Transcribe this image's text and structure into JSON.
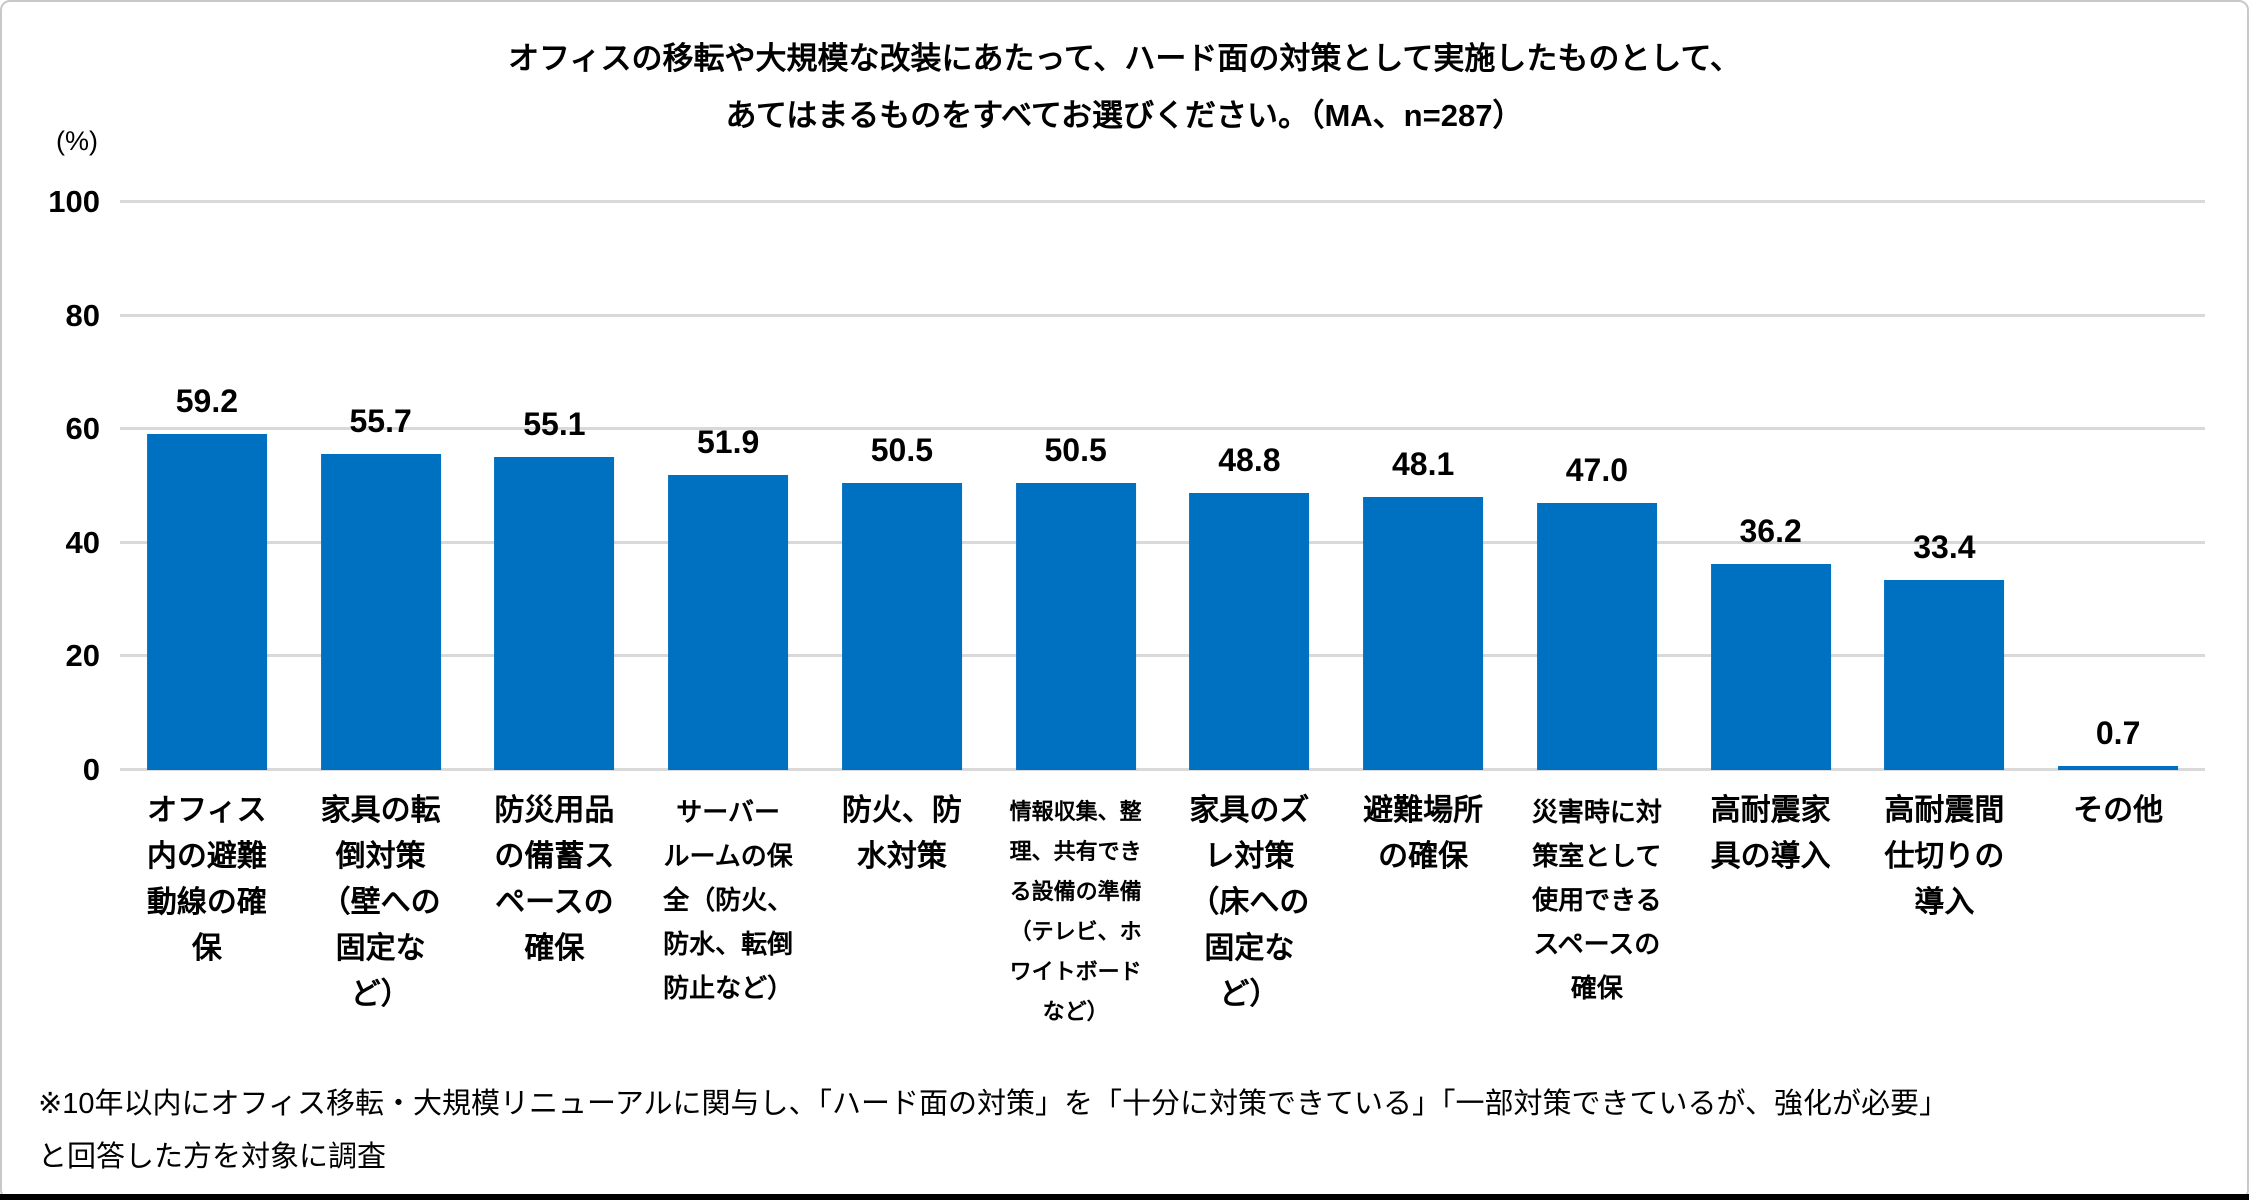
{
  "title": {
    "line1": "オフィスの移転や大規模な改装にあたって、ハード面の対策として実施したものとして、",
    "line2": "あてはまるものをすべてお選びください。（MA、n=287）"
  },
  "y_axis": {
    "unit_label": "(%)",
    "ticks": [
      0,
      20,
      40,
      60,
      80,
      100
    ],
    "max": 100
  },
  "footnote": {
    "line1": "※10年以内にオフィス移転・大規模リニューアルに関与し、「ハード面の対策」を「十分に対策できている」「一部対策できているが、強化が必要」",
    "line2": "と回答した方を対象に調査"
  },
  "colors": {
    "bar": "#0070c0",
    "gridline": "#d9d9d9",
    "text": "#000000",
    "frame_border": "#c9c9c9",
    "bottom_rule": "#000000"
  },
  "chart_data": {
    "type": "bar",
    "title": "オフィスの移転や大規模な改装にあたって、ハード面の対策として実施したものとして、あてはまるものをすべてお選びください。（MA、n=287）",
    "xlabel": "",
    "ylabel": "(%)",
    "ylim": [
      0,
      100
    ],
    "grid": true,
    "legend": false,
    "categories": [
      "オフィス内の避難動線の確保",
      "家具の転倒対策（壁への固定など）",
      "防災用品の備蓄スペースの確保",
      "サーバールームの保全（防火、防水、転倒防止など）",
      "防火、防水対策",
      "情報収集、整理、共有できる設備の準備（テレビ、ホワイトボードなど）",
      "家具のズレ対策（床への固定など）",
      "避難場所の確保",
      "災害時に対策室として使用できるスペースの確保",
      "高耐震家具の導入",
      "高耐震間仕切りの導入",
      "その他"
    ],
    "values": [
      59.2,
      55.7,
      55.1,
      51.9,
      50.5,
      50.5,
      48.8,
      48.1,
      47.0,
      36.2,
      33.4,
      0.7
    ],
    "value_labels": [
      "59.2",
      "55.7",
      "55.1",
      "51.9",
      "50.5",
      "50.5",
      "48.8",
      "48.1",
      "47.0",
      "36.2",
      "33.4",
      "0.7"
    ]
  },
  "category_display": [
    {
      "lines": [
        "オフィス",
        "内の避難",
        "動線の確",
        "保"
      ],
      "size": "large"
    },
    {
      "lines": [
        "家具の転",
        "倒対策",
        "（壁への",
        "固定な",
        "ど）"
      ],
      "size": "large"
    },
    {
      "lines": [
        "防災用品",
        "の備蓄ス",
        "ペースの",
        "確保"
      ],
      "size": "large"
    },
    {
      "lines": [
        "サーバー",
        "ルームの保",
        "全（防火、",
        "防水、転倒",
        "防止など）"
      ],
      "size": "medium"
    },
    {
      "lines": [
        "防火、防",
        "水対策"
      ],
      "size": "large"
    },
    {
      "lines": [
        "情報収集、整",
        "理、共有でき",
        "る設備の準備",
        "（テレビ、ホ",
        "ワイトボード",
        "など）"
      ],
      "size": "small"
    },
    {
      "lines": [
        "家具のズ",
        "レ対策",
        "（床への",
        "固定な",
        "ど）"
      ],
      "size": "large"
    },
    {
      "lines": [
        "避難場所",
        "の確保"
      ],
      "size": "large"
    },
    {
      "lines": [
        "災害時に対",
        "策室として",
        "使用できる",
        "スペースの",
        "確保"
      ],
      "size": "medium"
    },
    {
      "lines": [
        "高耐震家",
        "具の導入"
      ],
      "size": "large"
    },
    {
      "lines": [
        "高耐震間",
        "仕切りの",
        "導入"
      ],
      "size": "large"
    },
    {
      "lines": [
        "その他"
      ],
      "size": "large"
    }
  ]
}
